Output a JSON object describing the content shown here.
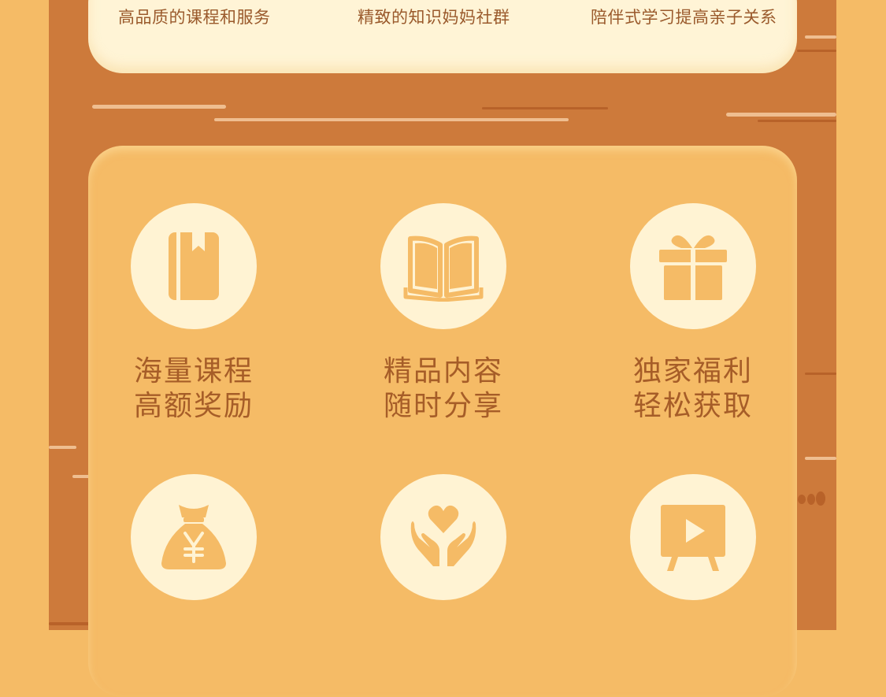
{
  "top_features": [
    {
      "label": "高品质的课程和服务"
    },
    {
      "label": "精致的知识妈妈社群"
    },
    {
      "label": "陪伴式学习提高亲子关系"
    }
  ],
  "items": [
    {
      "icon": "bookmark-book-icon",
      "line1": "海量课程",
      "line2": "高额奖励"
    },
    {
      "icon": "open-book-icon",
      "line1": "精品内容",
      "line2": "随时分享"
    },
    {
      "icon": "gift-icon",
      "line1": "独家福利",
      "line2": "轻松获取"
    },
    {
      "icon": "money-bag-icon",
      "line1": "",
      "line2": ""
    },
    {
      "icon": "hands-heart-icon",
      "line1": "",
      "line2": ""
    },
    {
      "icon": "video-board-icon",
      "line1": "",
      "line2": ""
    }
  ],
  "colors": {
    "page_bg": "#f5bb66",
    "wood": "#cd7a3b",
    "cream": "#fff3d3",
    "icon_fill": "#f5bb66",
    "text": "#a65d28"
  }
}
